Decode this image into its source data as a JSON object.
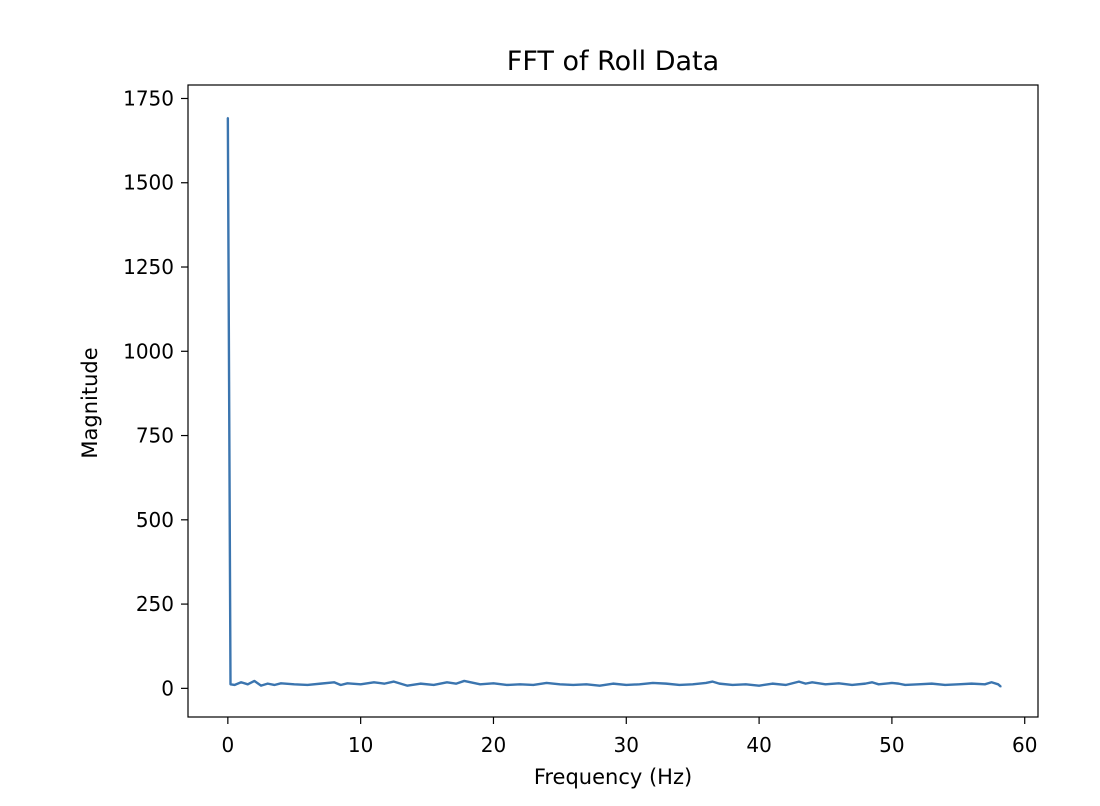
{
  "chart_data": {
    "type": "line",
    "title": "FFT of Roll Data",
    "xlabel": "Frequency (Hz)",
    "ylabel": "Magnitude",
    "xlim": [
      -3,
      61
    ],
    "ylim": [
      -85,
      1790
    ],
    "xticks": [
      0,
      10,
      20,
      30,
      40,
      50,
      60
    ],
    "yticks": [
      0,
      250,
      500,
      750,
      1000,
      1250,
      1500,
      1750
    ],
    "grid": false,
    "legend": "none",
    "line_color": "#3b75af",
    "series": [
      {
        "x": [
          0.0,
          0.2,
          0.5,
          1.0,
          1.5,
          2.0,
          2.5,
          3.0,
          3.5,
          4.0,
          5.0,
          6.0,
          7.0,
          8.0,
          8.5,
          9.0,
          10.0,
          11.0,
          11.8,
          12.5,
          13.5,
          14.5,
          15.5,
          16.5,
          17.2,
          17.8,
          19.0,
          20.0,
          21.0,
          22.0,
          23.0,
          24.0,
          25.0,
          26.0,
          27.0,
          28.0,
          29.0,
          30.0,
          31.0,
          32.0,
          33.0,
          34.0,
          35.0,
          36.0,
          36.5,
          37.0,
          38.0,
          39.0,
          40.0,
          41.0,
          42.0,
          43.0,
          43.5,
          44.0,
          45.0,
          46.0,
          47.0,
          48.0,
          48.5,
          49.0,
          50.0,
          50.5,
          51.0,
          52.0,
          53.0,
          54.0,
          55.0,
          56.0,
          57.0,
          57.5,
          58.0,
          58.2
        ],
        "y": [
          1693,
          12,
          10,
          18,
          12,
          22,
          8,
          14,
          10,
          15,
          12,
          10,
          14,
          18,
          10,
          15,
          12,
          18,
          14,
          20,
          8,
          14,
          10,
          18,
          14,
          22,
          12,
          15,
          10,
          12,
          10,
          16,
          12,
          10,
          12,
          8,
          14,
          10,
          12,
          16,
          14,
          10,
          12,
          16,
          20,
          14,
          10,
          12,
          8,
          14,
          10,
          20,
          14,
          18,
          12,
          15,
          10,
          14,
          18,
          12,
          16,
          14,
          10,
          12,
          14,
          10,
          12,
          14,
          12,
          18,
          12,
          5
        ]
      }
    ]
  }
}
